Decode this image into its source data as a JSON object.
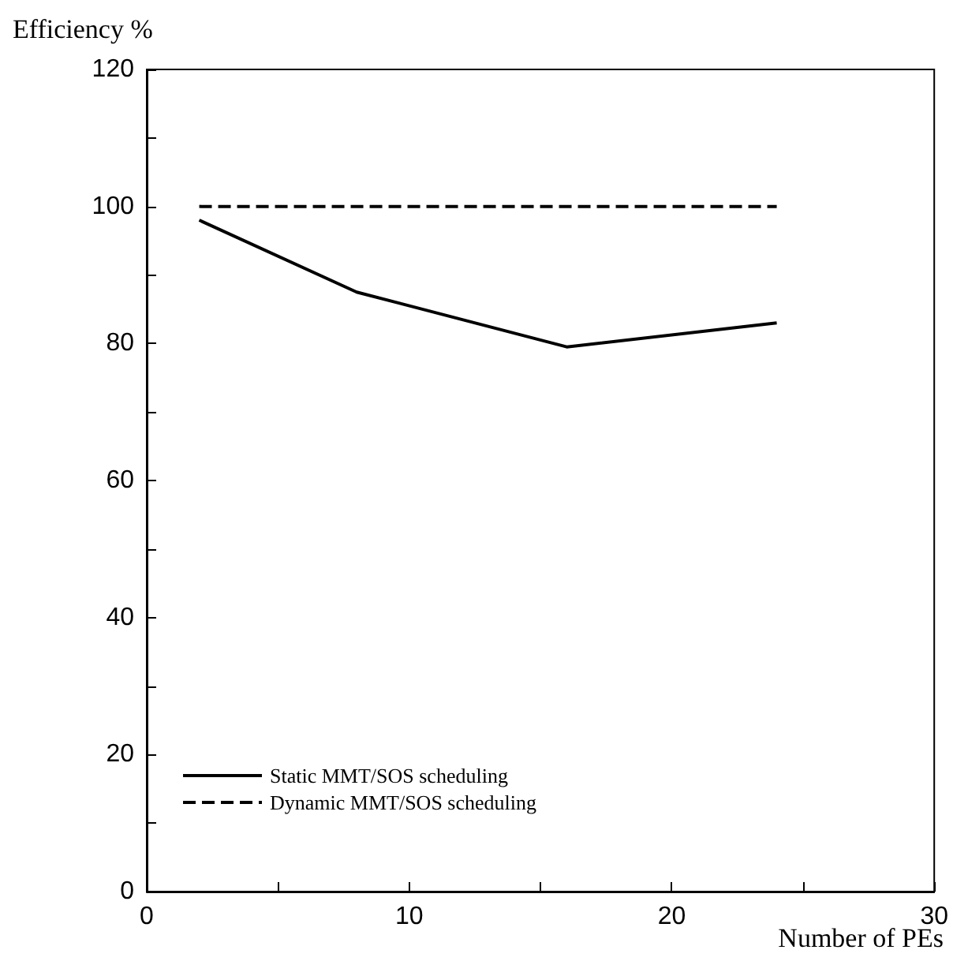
{
  "chart_data": {
    "type": "line",
    "xlabel": "Number of PEs",
    "ylabel": "Efficiency %",
    "xlim": [
      0,
      30
    ],
    "xticks": [
      0,
      {
        "value": 5,
        "label": null
      },
      10,
      {
        "value": 15,
        "label": null
      },
      20,
      {
        "value": 25,
        "label": null
      },
      30
    ],
    "ylim": [
      0,
      120
    ],
    "yticks": [
      0,
      {
        "value": 10,
        "label": null
      },
      20,
      {
        "value": 30,
        "label": null
      },
      40,
      {
        "value": 50,
        "label": null
      },
      60,
      {
        "value": 70,
        "label": null
      },
      80,
      {
        "value": 90,
        "label": null
      },
      100,
      {
        "value": 110,
        "label": null
      },
      120
    ],
    "grid": false,
    "legend": "bottom left",
    "marker": "none",
    "series": [
      {
        "name": "Static MMT/SOS scheduling",
        "color": "#000000",
        "line_style": "solid",
        "x": [
          2,
          8,
          16,
          24
        ],
        "values": [
          98,
          87.5,
          79.5,
          83
        ]
      },
      {
        "name": "Dynamic MMT/SOS scheduling",
        "color": "#000000",
        "line_style": "dashed",
        "x": [
          2,
          24
        ],
        "values": [
          100,
          100
        ]
      }
    ]
  }
}
